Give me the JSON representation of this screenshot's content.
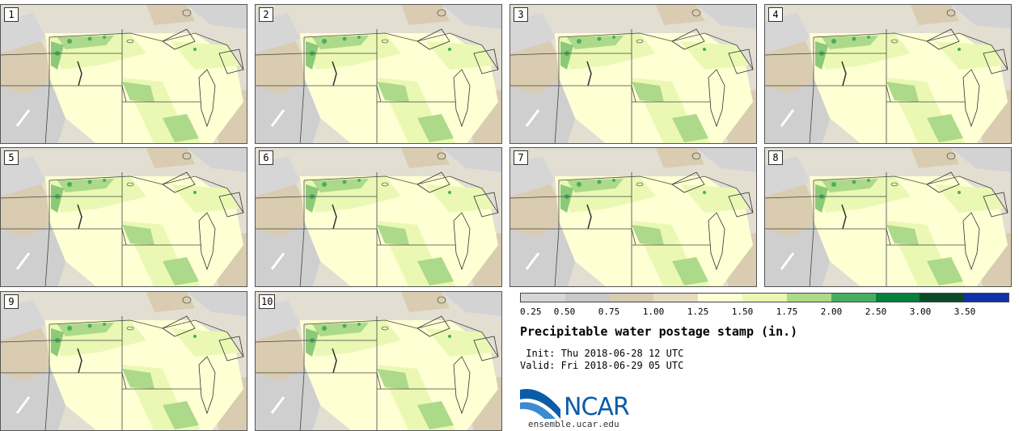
{
  "stamps": [
    "1",
    "2",
    "3",
    "4",
    "5",
    "6",
    "7",
    "8",
    "9",
    "10"
  ],
  "colorbar": {
    "colors": [
      "#d6d6d6",
      "#c9c9c9",
      "#d9ccb0",
      "#e8dcc0",
      "#ffffd4",
      "#eaf8b4",
      "#acd98a",
      "#47ae5f",
      "#08803c",
      "#0a4a25",
      "#1031a8"
    ],
    "ticks": [
      "0.25",
      "0.50",
      "0.75",
      "1.00",
      "1.25",
      "1.50",
      "1.75",
      "2.00",
      "2.50",
      "3.00",
      "3.50"
    ]
  },
  "title": "Precipitable water postage stamp (in.)",
  "init": " Init: Thu 2018-06-28 12 UTC",
  "valid": "Valid: Fri 2018-06-29 05 UTC",
  "logo_text": "NCAR",
  "url": "ensemble.ucar.edu"
}
